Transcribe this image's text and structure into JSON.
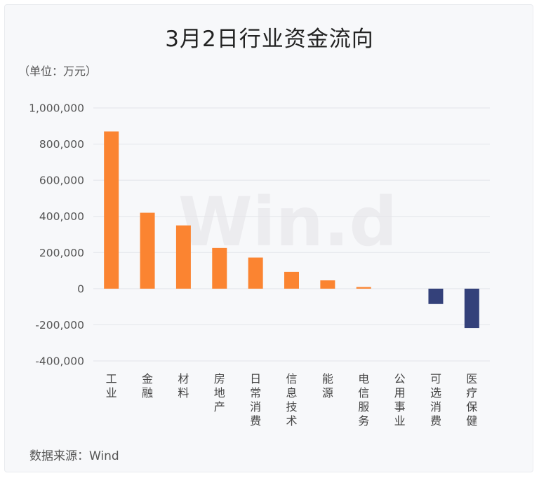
{
  "title": "3月2日行业资金流向",
  "unit_label": "（单位：万元）",
  "source": "数据来源：Wind",
  "watermark": "Win.d",
  "colors": {
    "positive": "#fb8431",
    "negative": "#34417a",
    "grid": "#e3e5ea"
  },
  "chart_data": {
    "type": "bar",
    "title": "3月2日行业资金流向",
    "ylabel": "（单位：万元）",
    "xlabel": "",
    "ylim": [
      -400000,
      1000000
    ],
    "yticks": [
      1000000,
      800000,
      600000,
      400000,
      200000,
      0,
      -200000,
      -400000
    ],
    "ytick_labels": [
      "1,000,000",
      "800,000",
      "600,000",
      "400,000",
      "200,000",
      "0",
      "-200,000",
      "-400,000"
    ],
    "grid": true,
    "categories": [
      "工业",
      "金融",
      "材料",
      "房地产",
      "日常消费",
      "信息技术",
      "能源",
      "电信服务",
      "公用事业",
      "可选消费",
      "医疗保健"
    ],
    "values": [
      870000,
      420000,
      350000,
      225000,
      172000,
      93000,
      46000,
      9000,
      0,
      -85000,
      -218000
    ]
  }
}
